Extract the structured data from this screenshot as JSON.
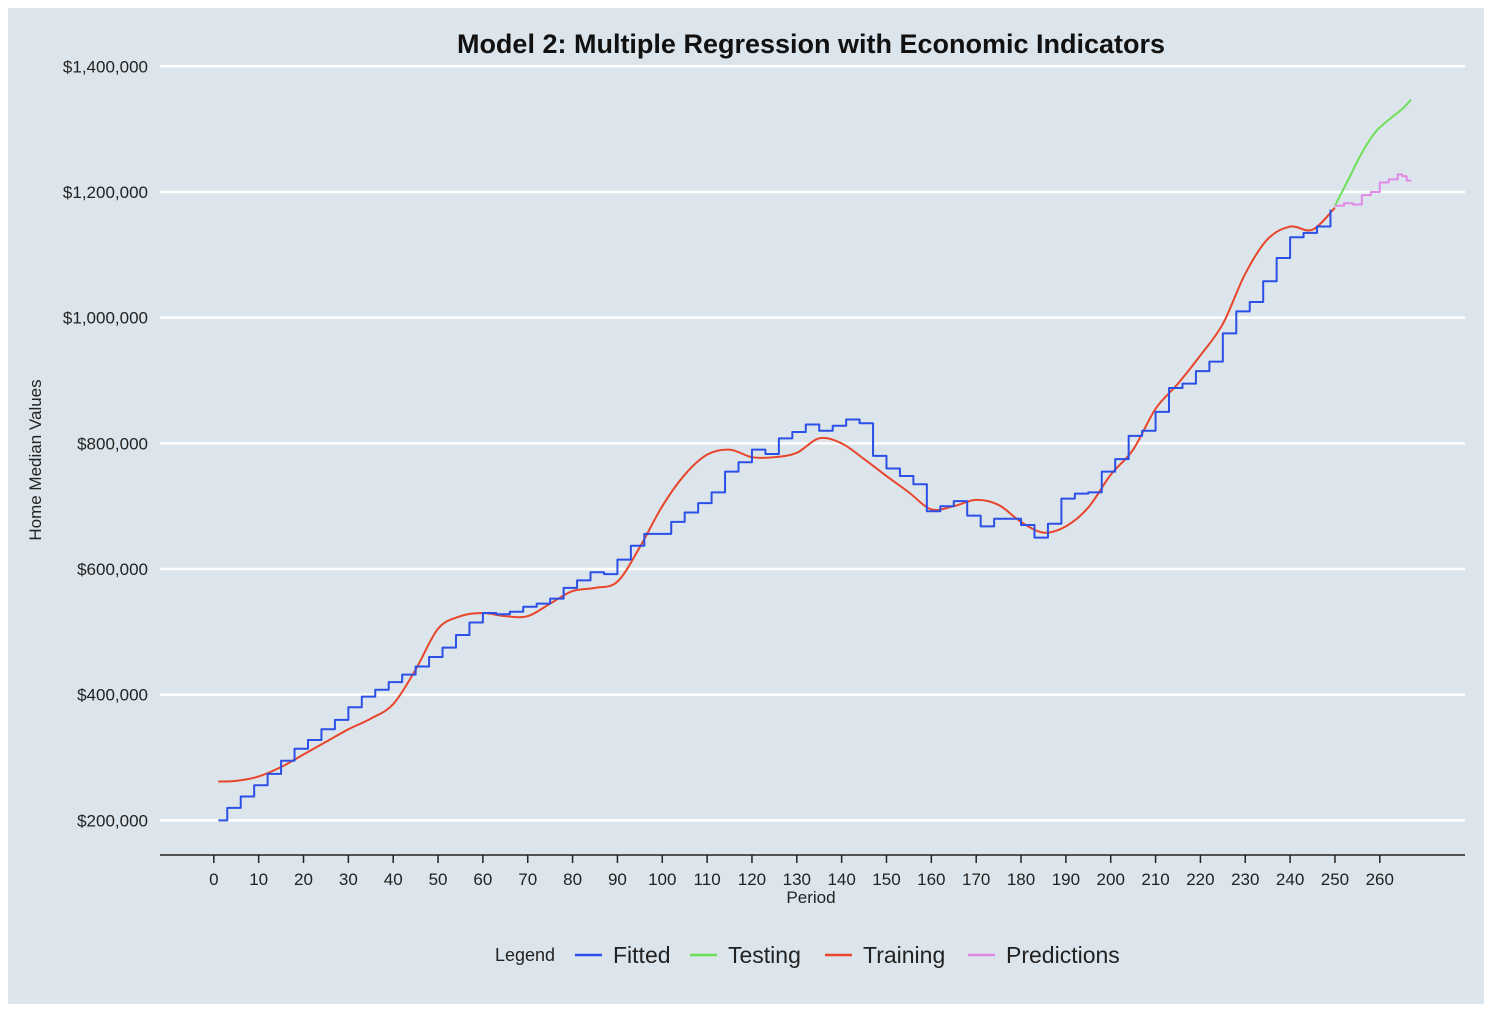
{
  "chart_data": {
    "type": "line",
    "title": "Model 2: Multiple Regression with Economic Indicators",
    "xlabel": "Period",
    "ylabel": "Home Median Values",
    "xlim": [
      -12,
      279
    ],
    "ylim": [
      145000,
      1410000
    ],
    "x_ticks": [
      0,
      10,
      20,
      30,
      40,
      50,
      60,
      70,
      80,
      90,
      100,
      110,
      120,
      130,
      140,
      150,
      160,
      170,
      180,
      190,
      200,
      210,
      220,
      230,
      240,
      250,
      260
    ],
    "y_ticks": [
      200000,
      400000,
      600000,
      800000,
      1000000,
      1200000,
      1400000
    ],
    "y_tick_labels": [
      "$200,000",
      "$400,000",
      "$600,000",
      "$800,000",
      "$1,000,000",
      "$1,200,000",
      "$1,400,000"
    ],
    "grid": "horizontal",
    "legend": {
      "title": "Legend",
      "position": "bottom",
      "entries": [
        {
          "name": "Fitted",
          "color": "#2b50e8"
        },
        {
          "name": "Testing",
          "color": "#6de05a"
        },
        {
          "name": "Training",
          "color": "#e8452b"
        },
        {
          "name": "Predictions",
          "color": "#e08ae8"
        }
      ]
    },
    "series": [
      {
        "name": "Training",
        "color": "#e8452b",
        "style": "smooth",
        "x": [
          1,
          5,
          10,
          15,
          20,
          25,
          30,
          35,
          40,
          45,
          50,
          55,
          60,
          65,
          70,
          75,
          80,
          85,
          90,
          95,
          100,
          105,
          110,
          115,
          120,
          125,
          130,
          135,
          140,
          145,
          150,
          155,
          160,
          165,
          170,
          175,
          180,
          185,
          190,
          195,
          200,
          205,
          210,
          215,
          220,
          225,
          230,
          235,
          240,
          245,
          250
        ],
        "y": [
          262000,
          263000,
          270000,
          285000,
          305000,
          325000,
          345000,
          362000,
          385000,
          440000,
          505000,
          525000,
          530000,
          525000,
          525000,
          545000,
          565000,
          570000,
          580000,
          635000,
          700000,
          750000,
          782000,
          790000,
          778000,
          778000,
          785000,
          808000,
          800000,
          775000,
          748000,
          722000,
          695000,
          700000,
          710000,
          702000,
          675000,
          658000,
          668000,
          698000,
          750000,
          790000,
          855000,
          895000,
          940000,
          990000,
          1070000,
          1125000,
          1145000,
          1140000,
          1175000
        ]
      },
      {
        "name": "Fitted",
        "color": "#2b50e8",
        "style": "step",
        "x": [
          1,
          3,
          6,
          9,
          12,
          15,
          18,
          21,
          24,
          27,
          30,
          33,
          36,
          39,
          42,
          45,
          48,
          51,
          54,
          57,
          60,
          63,
          66,
          69,
          72,
          75,
          78,
          81,
          84,
          87,
          90,
          93,
          96,
          99,
          102,
          105,
          108,
          111,
          114,
          117,
          120,
          123,
          126,
          129,
          132,
          135,
          138,
          141,
          144,
          147,
          150,
          153,
          156,
          159,
          162,
          165,
          168,
          171,
          174,
          177,
          180,
          183,
          186,
          189,
          192,
          195,
          198,
          201,
          204,
          207,
          210,
          213,
          216,
          219,
          222,
          225,
          228,
          231,
          234,
          237,
          240,
          243,
          246,
          249
        ],
        "y": [
          200000,
          220000,
          238000,
          256000,
          274000,
          295000,
          314000,
          328000,
          345000,
          360000,
          380000,
          397000,
          408000,
          420000,
          432000,
          445000,
          460000,
          475000,
          495000,
          515000,
          530000,
          528000,
          532000,
          540000,
          545000,
          553000,
          570000,
          582000,
          595000,
          592000,
          615000,
          637000,
          656000,
          656000,
          675000,
          690000,
          705000,
          722000,
          755000,
          770000,
          790000,
          783000,
          808000,
          818000,
          830000,
          820000,
          828000,
          838000,
          832000,
          780000,
          760000,
          748000,
          735000,
          692000,
          700000,
          708000,
          685000,
          668000,
          680000,
          680000,
          670000,
          650000,
          672000,
          712000,
          720000,
          722000,
          755000,
          775000,
          812000,
          820000,
          850000,
          888000,
          895000,
          915000,
          930000,
          975000,
          1010000,
          1025000,
          1058000,
          1095000,
          1128000,
          1135000,
          1145000,
          1172000
        ]
      },
      {
        "name": "Testing",
        "color": "#6de05a",
        "style": "smooth",
        "x": [
          250,
          253,
          256,
          259,
          262,
          265,
          267
        ],
        "y": [
          1178000,
          1220000,
          1262000,
          1295000,
          1315000,
          1332000,
          1347000
        ]
      },
      {
        "name": "Predictions",
        "color": "#e08ae8",
        "style": "step",
        "x": [
          250,
          252,
          254,
          256,
          258,
          260,
          262,
          264,
          265,
          266,
          267
        ],
        "y": [
          1178000,
          1182000,
          1180000,
          1195000,
          1200000,
          1215000,
          1220000,
          1228000,
          1225000,
          1218000,
          1218000
        ]
      }
    ]
  }
}
